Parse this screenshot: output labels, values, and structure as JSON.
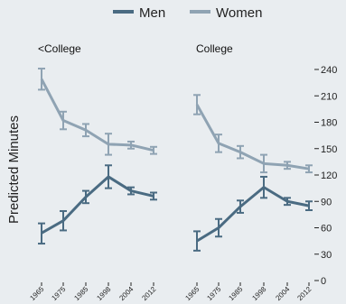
{
  "chart_data": {
    "type": "line",
    "ylabel": "Predicted Minutes",
    "ylim": [
      0,
      240
    ],
    "yticks": [
      0,
      30,
      60,
      90,
      120,
      150,
      180,
      210,
      240
    ],
    "x": [
      "1965",
      "1975",
      "1985",
      "1998",
      "2004",
      "2012"
    ],
    "legend": {
      "position": "top",
      "entries": [
        "Men",
        "Women"
      ]
    },
    "colors": {
      "Men": "#4a6b82",
      "Women": "#8fa3b3"
    },
    "panels": [
      {
        "title": "<College",
        "series": [
          {
            "name": "Men",
            "values": [
              54,
              68,
              95,
              118,
              102,
              96
            ],
            "ci": [
              [
                42,
                65
              ],
              [
                57,
                79
              ],
              [
                88,
                102
              ],
              [
                105,
                131
              ],
              [
                98,
                106
              ],
              [
                92,
                100
              ]
            ]
          },
          {
            "name": "Women",
            "values": [
              229,
              182,
              171,
              155,
              154,
              148
            ],
            "ci": [
              [
                217,
                241
              ],
              [
                172,
                192
              ],
              [
                164,
                178
              ],
              [
                143,
                167
              ],
              [
                150,
                158
              ],
              [
                144,
                152
              ]
            ]
          }
        ]
      },
      {
        "title": "College",
        "series": [
          {
            "name": "Men",
            "values": [
              45,
              60,
              84,
              106,
              90,
              85
            ],
            "ci": [
              [
                34,
                56
              ],
              [
                50,
                70
              ],
              [
                77,
                91
              ],
              [
                94,
                118
              ],
              [
                86,
                94
              ],
              [
                80,
                90
              ]
            ]
          },
          {
            "name": "Women",
            "values": [
              200,
              156,
              146,
              133,
              131,
              127
            ],
            "ci": [
              [
                189,
                211
              ],
              [
                146,
                166
              ],
              [
                139,
                153
              ],
              [
                123,
                143
              ],
              [
                127,
                135
              ],
              [
                123,
                131
              ]
            ]
          }
        ]
      }
    ]
  }
}
